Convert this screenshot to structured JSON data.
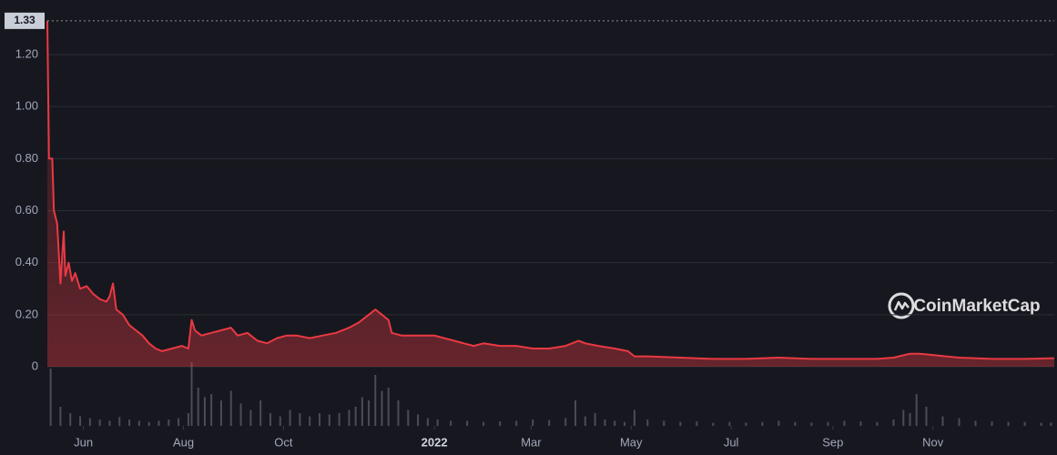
{
  "chart_data": {
    "type": "line",
    "color": "#ea3943",
    "grid": true,
    "watermark": "CoinMarketCap",
    "price_marker": {
      "value": 1.33,
      "label": "1.33"
    },
    "ylim": [
      0,
      1.34
    ],
    "yticks": [
      0,
      {
        "value": 0.2,
        "label": "0.20"
      },
      {
        "value": 0.4,
        "label": "0.40"
      },
      {
        "value": 0.6,
        "label": "0.60"
      },
      {
        "value": 0.8,
        "label": "0.80"
      },
      {
        "value": 1.0,
        "label": "1.00"
      },
      {
        "value": 1.2,
        "label": "1.20"
      }
    ],
    "xlim": [
      -236,
      378
    ],
    "xticks": [
      {
        "value": -214,
        "label": "Jun"
      },
      {
        "value": -153,
        "label": "Aug"
      },
      {
        "value": -92,
        "label": "Oct"
      },
      {
        "value": 0,
        "label": "2022"
      },
      {
        "value": 59,
        "label": "Mar"
      },
      {
        "value": 120,
        "label": "May"
      },
      {
        "value": 181,
        "label": "Jul"
      },
      {
        "value": 243,
        "label": "Sep"
      },
      {
        "value": 304,
        "label": "Nov"
      }
    ],
    "x": [
      -236,
      -235,
      -233,
      -232,
      -230,
      -228,
      -226,
      -225,
      -223,
      -221,
      -219,
      -216,
      -212,
      -208,
      -204,
      -200,
      -198,
      -196,
      -194,
      -190,
      -186,
      -182,
      -178,
      -174,
      -170,
      -166,
      -160,
      -154,
      -150,
      -148,
      -146,
      -142,
      -136,
      -130,
      -124,
      -120,
      -114,
      -108,
      -102,
      -96,
      -90,
      -84,
      -76,
      -68,
      -60,
      -52,
      -46,
      -40,
      -36,
      -32,
      -28,
      -26,
      -20,
      -12,
      -4,
      0,
      6,
      12,
      18,
      24,
      30,
      40,
      50,
      60,
      70,
      80,
      88,
      92,
      100,
      110,
      118,
      122,
      130,
      150,
      170,
      190,
      210,
      230,
      250,
      270,
      280,
      290,
      296,
      304,
      312,
      320,
      340,
      360,
      378
    ],
    "values": [
      1.33,
      0.8,
      0.8,
      0.6,
      0.55,
      0.32,
      0.52,
      0.35,
      0.4,
      0.33,
      0.36,
      0.3,
      0.31,
      0.28,
      0.26,
      0.25,
      0.27,
      0.32,
      0.22,
      0.2,
      0.16,
      0.14,
      0.12,
      0.09,
      0.07,
      0.06,
      0.07,
      0.08,
      0.07,
      0.18,
      0.14,
      0.12,
      0.13,
      0.14,
      0.15,
      0.12,
      0.13,
      0.1,
      0.09,
      0.11,
      0.12,
      0.12,
      0.11,
      0.12,
      0.13,
      0.15,
      0.17,
      0.2,
      0.22,
      0.2,
      0.18,
      0.13,
      0.12,
      0.12,
      0.12,
      0.12,
      0.11,
      0.1,
      0.09,
      0.08,
      0.09,
      0.08,
      0.08,
      0.07,
      0.07,
      0.08,
      0.1,
      0.09,
      0.08,
      0.07,
      0.06,
      0.04,
      0.04,
      0.035,
      0.03,
      0.03,
      0.035,
      0.03,
      0.03,
      0.03,
      0.035,
      0.05,
      0.05,
      0.045,
      0.04,
      0.035,
      0.03,
      0.03,
      0.033
    ],
    "volume": {
      "x": [
        -234,
        -228,
        -222,
        -216,
        -210,
        -204,
        -198,
        -192,
        -186,
        -180,
        -174,
        -168,
        -162,
        -156,
        -150,
        -148,
        -144,
        -140,
        -136,
        -130,
        -124,
        -118,
        -112,
        -106,
        -100,
        -94,
        -88,
        -82,
        -76,
        -70,
        -64,
        -58,
        -52,
        -48,
        -44,
        -40,
        -36,
        -32,
        -28,
        -22,
        -16,
        -10,
        -4,
        2,
        10,
        20,
        30,
        40,
        50,
        60,
        70,
        80,
        86,
        92,
        98,
        104,
        110,
        116,
        122,
        130,
        140,
        150,
        160,
        170,
        180,
        190,
        200,
        210,
        220,
        230,
        240,
        250,
        260,
        270,
        280,
        286,
        290,
        294,
        300,
        310,
        320,
        330,
        340,
        350,
        360,
        370,
        376
      ],
      "values": [
        90,
        30,
        20,
        15,
        12,
        10,
        8,
        14,
        10,
        8,
        6,
        8,
        10,
        12,
        20,
        100,
        60,
        45,
        50,
        40,
        55,
        35,
        25,
        40,
        20,
        15,
        25,
        20,
        15,
        20,
        18,
        20,
        25,
        30,
        45,
        40,
        80,
        55,
        60,
        40,
        25,
        18,
        12,
        10,
        8,
        8,
        6,
        7,
        8,
        10,
        9,
        12,
        40,
        15,
        20,
        10,
        8,
        6,
        25,
        10,
        8,
        6,
        7,
        5,
        6,
        5,
        6,
        8,
        6,
        5,
        6,
        8,
        7,
        6,
        10,
        25,
        20,
        50,
        30,
        15,
        12,
        8,
        7,
        6,
        6,
        5,
        5
      ]
    }
  }
}
